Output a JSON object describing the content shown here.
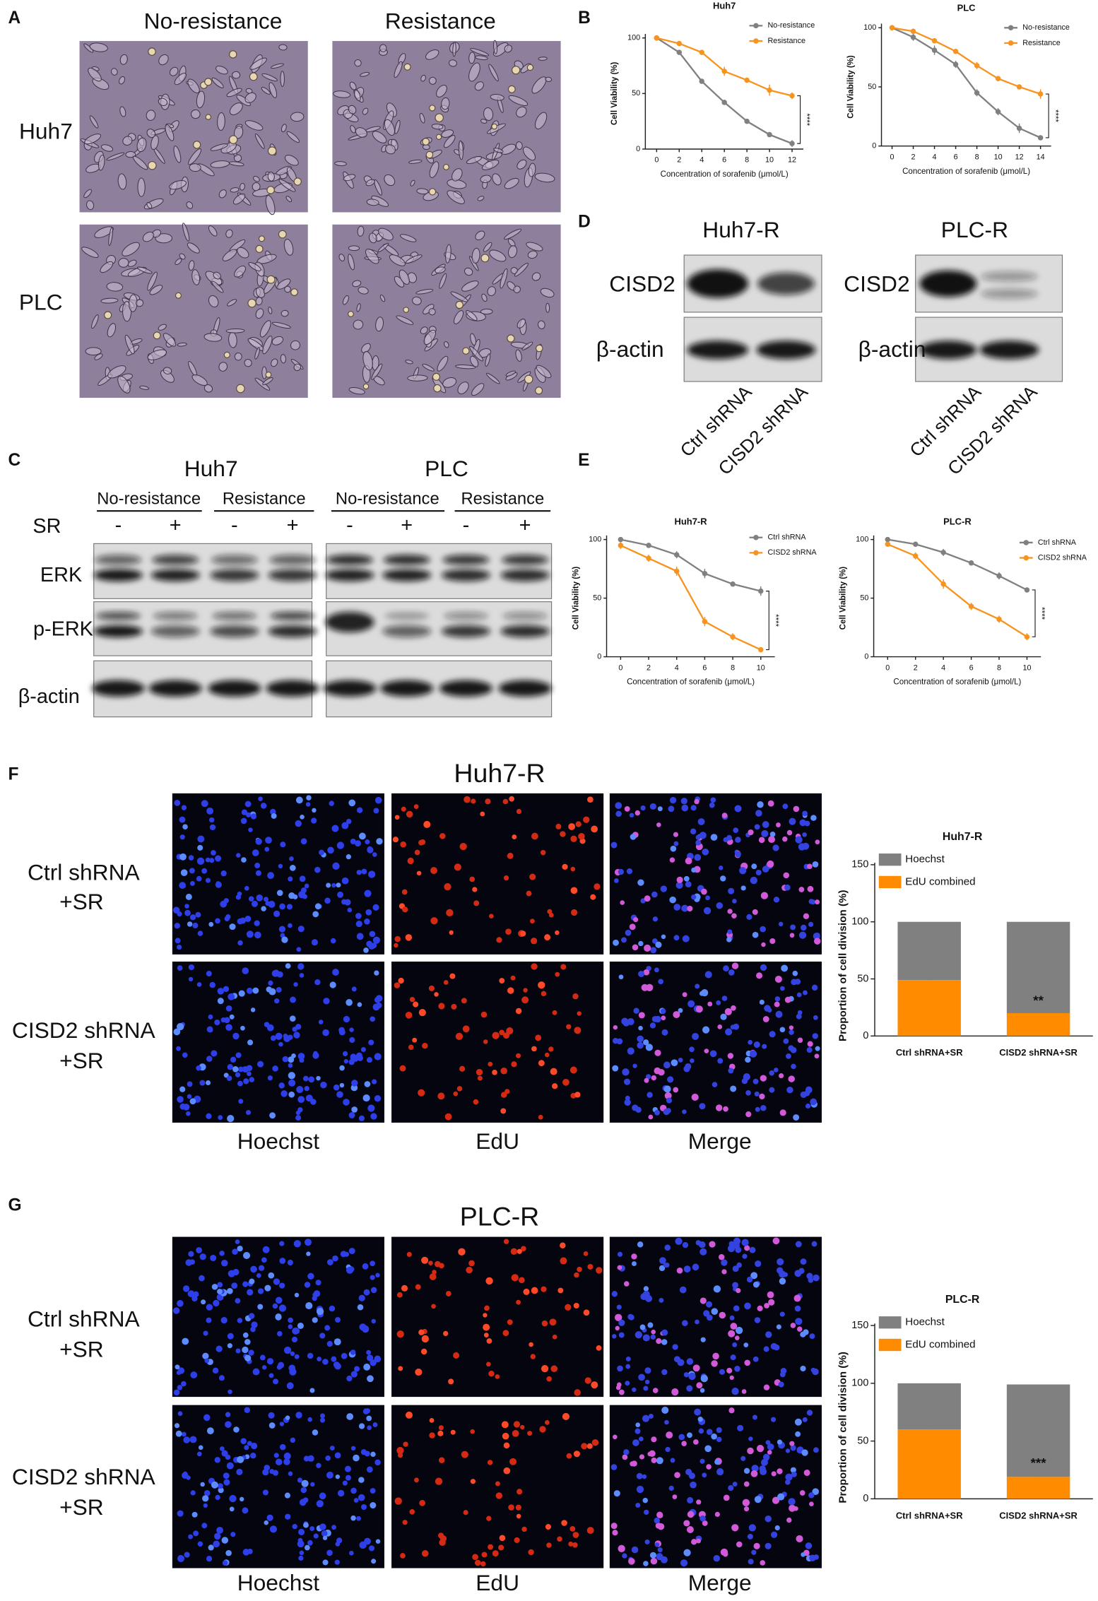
{
  "figure": {
    "panel_labels": [
      "A",
      "B",
      "C",
      "D",
      "E",
      "F",
      "G"
    ],
    "panel_a": {
      "columns": [
        "No-resistance",
        "Resistance"
      ],
      "rows": [
        "Huh7",
        "PLC"
      ]
    },
    "panel_c": {
      "cell_lines": [
        "Huh7",
        "PLC"
      ],
      "groups": [
        "No-resistance",
        "Resistance",
        "No-resistance",
        "Resistance"
      ],
      "treatment_label": "SR",
      "treatment": [
        "-",
        "+",
        "-",
        "+",
        "-",
        "+",
        "-",
        "+"
      ],
      "rows": [
        "ERK",
        "p-ERK",
        "β-actin"
      ]
    },
    "panel_d": {
      "cell_lines": [
        "Huh7-R",
        "PLC-R"
      ],
      "rows": [
        "CISD2",
        "β-actin"
      ],
      "lanes": [
        "Ctrl shRNA",
        "CISD2 shRNA"
      ]
    },
    "panel_f": {
      "title": "Huh7-R",
      "rows": [
        [
          "Ctrl shRNA",
          "+SR"
        ],
        [
          "CISD2 shRNA",
          "+SR"
        ]
      ],
      "columns": [
        "Hoechst",
        "EdU",
        "Merge"
      ]
    },
    "panel_g": {
      "title": "PLC-R",
      "rows": [
        [
          "Ctrl shRNA",
          "+SR"
        ],
        [
          "CISD2 shRNA",
          "+SR"
        ]
      ],
      "columns": [
        "Hoechst",
        "EdU",
        "Merge"
      ]
    }
  },
  "chart_data": [
    {
      "type": "line",
      "title": "Huh7",
      "x": [
        0,
        2,
        4,
        6,
        8,
        10,
        12
      ],
      "series": [
        {
          "name": "No-resistance",
          "color": "#808080",
          "values": [
            100,
            87,
            61,
            42,
            25,
            13,
            5
          ],
          "errors": [
            1,
            2,
            2,
            1,
            2,
            2,
            3
          ]
        },
        {
          "name": "Resistance",
          "color": "#f7931e",
          "values": [
            100,
            95,
            87,
            70,
            62,
            53,
            48
          ],
          "errors": [
            1,
            2,
            2,
            4,
            2,
            5,
            3
          ]
        }
      ],
      "xlabel": "Concentration of sorafenib (μmol/L)",
      "ylabel": "Cell Viability (%)",
      "xlim": [
        -1,
        13
      ],
      "ylim": [
        0,
        100
      ],
      "xticks": [
        0,
        2,
        4,
        6,
        8,
        10,
        12
      ],
      "yticks": [
        0,
        50,
        100
      ],
      "annotation": "****"
    },
    {
      "type": "line",
      "title": "PLC",
      "x": [
        0,
        2,
        4,
        6,
        8,
        10,
        12,
        14
      ],
      "series": [
        {
          "name": "No-resistance",
          "color": "#808080",
          "values": [
            100,
            92,
            81,
            69,
            45,
            29,
            15,
            7
          ],
          "errors": [
            1,
            3,
            4,
            3,
            3,
            3,
            4,
            1
          ]
        },
        {
          "name": "Resistance",
          "color": "#f7931e",
          "values": [
            100,
            97,
            89,
            80,
            68,
            57,
            50,
            44
          ],
          "errors": [
            1,
            2,
            2,
            2,
            3,
            2,
            2,
            4
          ]
        }
      ],
      "xlabel": "Concentration of sorafenib (μmol/L)",
      "ylabel": "Cell Viability (%)",
      "xlim": [
        -1,
        15
      ],
      "ylim": [
        0,
        100
      ],
      "xticks": [
        0,
        2,
        4,
        6,
        8,
        10,
        12,
        14
      ],
      "yticks": [
        0,
        50,
        100
      ],
      "annotation": "****"
    },
    {
      "type": "line",
      "title": "Huh7-R",
      "x": [
        0,
        2,
        4,
        6,
        8,
        10
      ],
      "series": [
        {
          "name": "Ctrl shRNA",
          "color": "#808080",
          "values": [
            100,
            95,
            87,
            71,
            62,
            56
          ],
          "errors": [
            1,
            2,
            3,
            4,
            1,
            4
          ]
        },
        {
          "name": "CISD2 shRNA",
          "color": "#f7931e",
          "values": [
            95,
            84,
            73,
            30,
            17,
            6
          ],
          "errors": [
            3,
            3,
            4,
            4,
            3,
            2
          ]
        }
      ],
      "xlabel": "Concentration of sorafenib (μmol/L)",
      "ylabel": "Cell Viability (%)",
      "xlim": [
        -1,
        11
      ],
      "ylim": [
        0,
        100
      ],
      "xticks": [
        0,
        2,
        4,
        6,
        8,
        10
      ],
      "yticks": [
        0,
        50,
        100
      ],
      "annotation": "****"
    },
    {
      "type": "line",
      "title": "PLC-R",
      "x": [
        0,
        2,
        4,
        6,
        8,
        10
      ],
      "series": [
        {
          "name": "Ctrl shRNA",
          "color": "#808080",
          "values": [
            100,
            96,
            89,
            80,
            69,
            57
          ],
          "errors": [
            1,
            2,
            3,
            2,
            3,
            2
          ]
        },
        {
          "name": "CISD2 shRNA",
          "color": "#f7931e",
          "values": [
            96,
            86,
            62,
            43,
            32,
            17
          ],
          "errors": [
            2,
            3,
            4,
            3,
            3,
            3
          ]
        }
      ],
      "xlabel": "Concentration of sorafenib (μmol/L)",
      "ylabel": "Cell Viability (%)",
      "xlim": [
        -1,
        11
      ],
      "ylim": [
        0,
        100
      ],
      "xticks": [
        0,
        2,
        4,
        6,
        8,
        10
      ],
      "yticks": [
        0,
        50,
        100
      ],
      "annotation": "****"
    },
    {
      "type": "bar",
      "stacked": true,
      "title": "Huh7-R",
      "categories": [
        "Ctrl shRNA+SR",
        "CISD2 shRNA+SR"
      ],
      "series": [
        {
          "name": "EdU combined",
          "color": "#ff8c00",
          "values": [
            49,
            20
          ],
          "errors": [
            6,
            4
          ]
        },
        {
          "name": "Hoechst",
          "color": "#808080",
          "values": [
            51,
            80
          ]
        }
      ],
      "ylabel": "Proportion of cell division (%)",
      "ylim": [
        0,
        150
      ],
      "yticks": [
        0,
        50,
        100,
        150
      ],
      "annotation": "**"
    },
    {
      "type": "bar",
      "stacked": true,
      "title": "PLC-R",
      "categories": [
        "Ctrl shRNA+SR",
        "CISD2 shRNA+SR"
      ],
      "series": [
        {
          "name": "EdU combined",
          "color": "#ff8c00",
          "values": [
            60,
            19
          ],
          "errors": [
            3,
            5
          ]
        },
        {
          "name": "Hoechst",
          "color": "#808080",
          "values": [
            40,
            80
          ]
        }
      ],
      "ylabel": "Proportion of cell division (%)",
      "ylim": [
        0,
        150
      ],
      "yticks": [
        0,
        50,
        100,
        150
      ],
      "annotation": "***"
    }
  ]
}
